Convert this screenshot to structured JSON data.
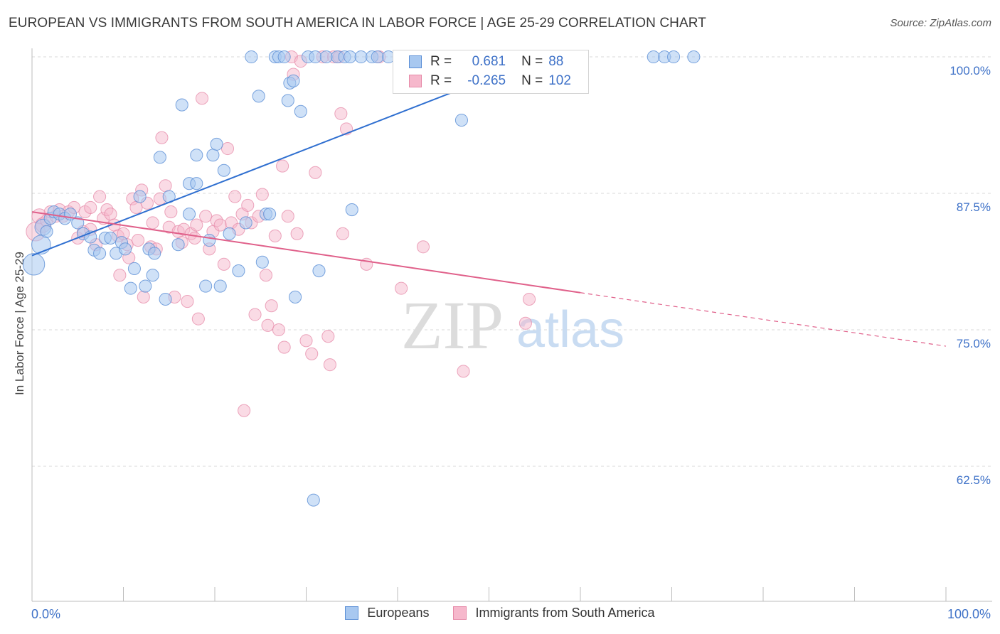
{
  "title": "EUROPEAN VS IMMIGRANTS FROM SOUTH AMERICA IN LABOR FORCE | AGE 25-29 CORRELATION CHART",
  "source": "Source: ZipAtlas.com",
  "colors": {
    "blue_fill": "#a8c8f0",
    "blue_stroke": "#5b8fd6",
    "blue_line": "#2f6fd0",
    "pink_fill": "#f6b8cc",
    "pink_stroke": "#e68aa8",
    "pink_line": "#e0608a",
    "axis_text": "#3f72c8"
  },
  "stats": {
    "row1": {
      "r_label": "R =",
      "r_value": "0.681",
      "n_label": "N =",
      "n_value": "88"
    },
    "row2": {
      "r_label": "R =",
      "r_value": "-0.265",
      "n_label": "N =",
      "n_value": "102"
    }
  },
  "watermark": {
    "zip": "ZIP",
    "atlas": "atlas"
  },
  "legend": {
    "europeans": "Europeans",
    "immigrants": "Immigrants from South America"
  },
  "chart_data": {
    "type": "scatter",
    "xlabel": "",
    "ylabel": "In Labor Force | Age 25-29",
    "xlim": [
      0,
      100
    ],
    "ylim": [
      52,
      101
    ],
    "x_tick_labels": [
      "0.0%",
      "100.0%"
    ],
    "y_ticks": [
      100.0,
      87.5,
      75.0,
      62.5
    ],
    "y_tick_labels": [
      "100.0%",
      "87.5%",
      "75.0%",
      "62.5%"
    ],
    "grid": true,
    "series": [
      {
        "name": "Europeans",
        "r": 0.681,
        "n": 88,
        "trend": {
          "x": [
            0,
            56
          ],
          "y": [
            81.8,
            100.0
          ],
          "dashed_to": null
        },
        "points": [
          [
            0.2,
            81.0,
            16
          ],
          [
            1.0,
            82.8,
            14
          ],
          [
            1.2,
            84.4,
            12
          ],
          [
            1.6,
            84.0,
            9
          ],
          [
            2.0,
            85.2,
            9
          ],
          [
            2.4,
            85.8,
            9
          ],
          [
            3.0,
            85.6,
            9
          ],
          [
            3.6,
            85.2,
            9
          ],
          [
            4.2,
            85.6,
            9
          ],
          [
            5.0,
            84.8,
            9
          ],
          [
            5.6,
            83.8,
            9
          ],
          [
            6.4,
            83.5,
            9
          ],
          [
            6.8,
            82.3,
            9
          ],
          [
            7.4,
            82.0,
            9
          ],
          [
            8.0,
            83.4,
            9
          ],
          [
            8.6,
            83.4,
            9
          ],
          [
            9.2,
            82.0,
            9
          ],
          [
            9.8,
            83.0,
            9
          ],
          [
            10.2,
            82.4,
            9
          ],
          [
            10.8,
            78.8,
            9
          ],
          [
            11.2,
            80.6,
            9
          ],
          [
            11.8,
            87.2,
            9
          ],
          [
            12.4,
            79.0,
            9
          ],
          [
            12.8,
            82.4,
            9
          ],
          [
            13.2,
            80.0,
            9
          ],
          [
            13.4,
            82.0,
            9
          ],
          [
            14.0,
            90.8,
            9
          ],
          [
            14.6,
            77.8,
            9
          ],
          [
            15.0,
            87.2,
            9
          ],
          [
            16.0,
            82.8,
            9
          ],
          [
            16.4,
            95.6,
            9
          ],
          [
            17.2,
            85.6,
            9
          ],
          [
            17.2,
            88.4,
            9
          ],
          [
            18.0,
            88.4,
            9
          ],
          [
            18.0,
            91.0,
            9
          ],
          [
            19.0,
            79.0,
            9
          ],
          [
            19.4,
            83.2,
            9
          ],
          [
            19.8,
            91.0,
            9
          ],
          [
            20.2,
            92.0,
            9
          ],
          [
            20.6,
            79.0,
            9
          ],
          [
            21.0,
            89.6,
            9
          ],
          [
            21.6,
            83.8,
            9
          ],
          [
            22.6,
            80.4,
            9
          ],
          [
            23.4,
            84.8,
            9
          ],
          [
            24.0,
            100.0,
            9
          ],
          [
            24.8,
            96.4,
            9
          ],
          [
            25.2,
            81.2,
            9
          ],
          [
            25.6,
            85.6,
            9
          ],
          [
            26.0,
            85.6,
            9
          ],
          [
            26.6,
            100.0,
            9
          ],
          [
            27.0,
            100.0,
            9
          ],
          [
            27.6,
            100.0,
            9
          ],
          [
            28.0,
            96.0,
            9
          ],
          [
            28.2,
            97.6,
            9
          ],
          [
            28.6,
            97.8,
            9
          ],
          [
            28.8,
            78.0,
            9
          ],
          [
            29.4,
            95.0,
            9
          ],
          [
            30.2,
            100.0,
            9
          ],
          [
            31.0,
            100.0,
            9
          ],
          [
            31.4,
            80.4,
            9
          ],
          [
            32.2,
            100.0,
            9
          ],
          [
            33.4,
            100.0,
            9
          ],
          [
            34.2,
            100.0,
            9
          ],
          [
            34.8,
            100.0,
            9
          ],
          [
            35.0,
            86.0,
            9
          ],
          [
            36.0,
            100.0,
            9
          ],
          [
            37.2,
            100.0,
            9
          ],
          [
            37.8,
            100.0,
            9
          ],
          [
            39.0,
            100.0,
            9
          ],
          [
            40.4,
            100.0,
            9
          ],
          [
            41.2,
            100.0,
            9
          ],
          [
            42.2,
            100.0,
            9
          ],
          [
            44.0,
            100.0,
            9
          ],
          [
            45.0,
            100.0,
            9
          ],
          [
            46.0,
            100.0,
            9
          ],
          [
            47.6,
            100.0,
            9
          ],
          [
            48.6,
            100.0,
            9
          ],
          [
            47.0,
            94.2,
            9
          ],
          [
            50.0,
            100.0,
            9
          ],
          [
            51.6,
            100.0,
            9
          ],
          [
            52.6,
            100.0,
            9
          ],
          [
            55.6,
            100.0,
            9
          ],
          [
            57.0,
            100.0,
            9
          ],
          [
            68.0,
            100.0,
            9
          ],
          [
            69.2,
            100.0,
            9
          ],
          [
            70.2,
            100.0,
            9
          ],
          [
            72.4,
            100.0,
            9
          ],
          [
            30.8,
            59.4,
            9
          ]
        ]
      },
      {
        "name": "Immigrants from South America",
        "r": -0.265,
        "n": 102,
        "trend": {
          "x": [
            0,
            60
          ],
          "y": [
            85.8,
            78.4
          ],
          "dashed_to": [
            100,
            73.5
          ]
        },
        "points": [
          [
            0.4,
            84.0,
            14
          ],
          [
            0.8,
            85.4,
            11
          ],
          [
            1.2,
            84.6,
            11
          ],
          [
            1.6,
            85.0,
            9
          ],
          [
            2.0,
            85.8,
            9
          ],
          [
            2.6,
            85.4,
            9
          ],
          [
            3.0,
            86.0,
            9
          ],
          [
            3.4,
            85.4,
            9
          ],
          [
            4.0,
            85.8,
            9
          ],
          [
            4.6,
            86.2,
            9
          ],
          [
            5.0,
            83.4,
            9
          ],
          [
            5.6,
            84.0,
            9
          ],
          [
            5.8,
            85.8,
            9
          ],
          [
            6.4,
            86.2,
            9
          ],
          [
            6.4,
            84.2,
            9
          ],
          [
            7.0,
            82.8,
            9
          ],
          [
            7.4,
            87.2,
            9
          ],
          [
            7.8,
            85.2,
            9
          ],
          [
            8.2,
            86.0,
            9
          ],
          [
            8.6,
            85.6,
            9
          ],
          [
            9.0,
            84.6,
            9
          ],
          [
            9.4,
            83.6,
            9
          ],
          [
            9.6,
            80.0,
            9
          ],
          [
            10.0,
            83.8,
            9
          ],
          [
            10.4,
            82.8,
            9
          ],
          [
            10.6,
            81.6,
            9
          ],
          [
            11.0,
            87.0,
            9
          ],
          [
            11.4,
            86.2,
            9
          ],
          [
            11.6,
            83.2,
            9
          ],
          [
            12.0,
            87.8,
            9
          ],
          [
            12.2,
            78.0,
            9
          ],
          [
            12.6,
            86.6,
            9
          ],
          [
            13.0,
            82.6,
            9
          ],
          [
            13.2,
            84.8,
            9
          ],
          [
            13.6,
            82.4,
            9
          ],
          [
            14.0,
            87.0,
            9
          ],
          [
            14.2,
            92.6,
            9
          ],
          [
            14.6,
            88.2,
            9
          ],
          [
            15.0,
            84.4,
            9
          ],
          [
            15.2,
            85.8,
            9
          ],
          [
            15.6,
            78.0,
            9
          ],
          [
            16.0,
            84.0,
            9
          ],
          [
            16.4,
            83.0,
            9
          ],
          [
            16.6,
            84.2,
            9
          ],
          [
            17.0,
            77.6,
            9
          ],
          [
            17.4,
            83.8,
            9
          ],
          [
            17.8,
            83.4,
            9
          ],
          [
            18.0,
            84.6,
            9
          ],
          [
            18.2,
            76.0,
            9
          ],
          [
            18.6,
            96.2,
            9
          ],
          [
            19.0,
            85.4,
            9
          ],
          [
            19.4,
            82.4,
            9
          ],
          [
            19.8,
            84.0,
            9
          ],
          [
            20.2,
            85.0,
            9
          ],
          [
            20.6,
            84.6,
            9
          ],
          [
            21.0,
            81.0,
            9
          ],
          [
            21.4,
            91.6,
            9
          ],
          [
            21.8,
            84.8,
            9
          ],
          [
            22.2,
            87.2,
            9
          ],
          [
            22.6,
            84.2,
            9
          ],
          [
            23.0,
            85.6,
            9
          ],
          [
            23.2,
            67.6,
            9
          ],
          [
            23.6,
            86.4,
            9
          ],
          [
            24.0,
            84.8,
            9
          ],
          [
            24.4,
            76.4,
            9
          ],
          [
            24.8,
            85.4,
            9
          ],
          [
            25.2,
            87.4,
            9
          ],
          [
            25.6,
            80.0,
            9
          ],
          [
            25.8,
            75.4,
            9
          ],
          [
            26.2,
            77.2,
            9
          ],
          [
            26.6,
            83.6,
            9
          ],
          [
            27.0,
            75.0,
            9
          ],
          [
            27.4,
            90.0,
            9
          ],
          [
            27.6,
            73.4,
            9
          ],
          [
            28.0,
            85.4,
            9
          ],
          [
            28.4,
            100.0,
            9
          ],
          [
            28.6,
            98.4,
            9
          ],
          [
            29.0,
            83.8,
            9
          ],
          [
            29.4,
            99.6,
            9
          ],
          [
            30.0,
            74.0,
            9
          ],
          [
            30.6,
            72.8,
            9
          ],
          [
            31.0,
            89.4,
            9
          ],
          [
            31.8,
            100.0,
            9
          ],
          [
            32.4,
            74.4,
            9
          ],
          [
            32.6,
            71.8,
            9
          ],
          [
            33.0,
            100.0,
            9
          ],
          [
            33.6,
            100.0,
            9
          ],
          [
            33.8,
            94.8,
            9
          ],
          [
            34.0,
            83.8,
            9
          ],
          [
            34.4,
            93.4,
            9
          ],
          [
            36.6,
            81.0,
            9
          ],
          [
            38.0,
            100.0,
            9
          ],
          [
            40.4,
            78.8,
            9
          ],
          [
            42.8,
            82.6,
            9
          ],
          [
            44.0,
            100.0,
            9
          ],
          [
            45.0,
            100.0,
            9
          ],
          [
            47.2,
            71.2,
            9
          ],
          [
            50.0,
            100.0,
            9
          ],
          [
            53.0,
            100.0,
            9
          ],
          [
            54.0,
            75.6,
            9
          ],
          [
            54.4,
            77.8,
            9
          ]
        ]
      }
    ]
  }
}
